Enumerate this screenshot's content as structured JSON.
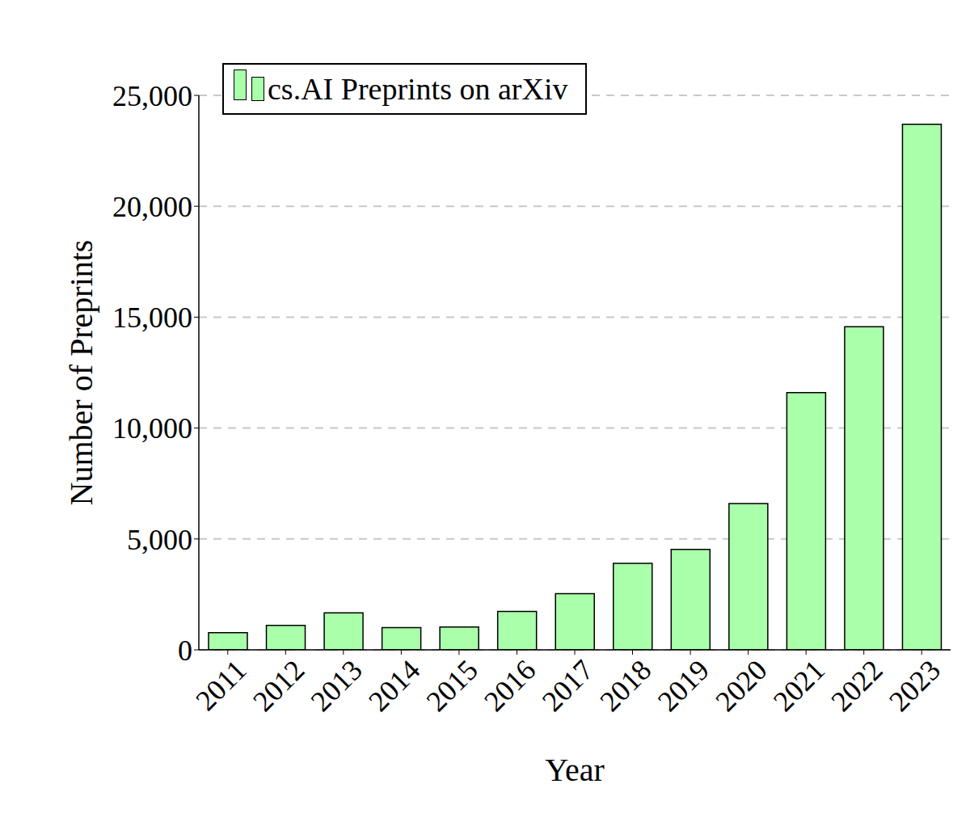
{
  "chart_data": {
    "type": "bar",
    "x_label": "Year",
    "y_label": "Number of Preprints",
    "categories": [
      "2011",
      "2012",
      "2013",
      "2014",
      "2015",
      "2016",
      "2017",
      "2018",
      "2019",
      "2020",
      "2021",
      "2022",
      "2023"
    ],
    "series": [
      {
        "name": "cs.AI Preprints on arXiv",
        "color": "#aaffaa",
        "values": [
          770,
          1100,
          1670,
          1000,
          1030,
          1730,
          2530,
          3900,
          4530,
          6600,
          11600,
          14570,
          23700
        ]
      }
    ],
    "ylim": [
      0,
      25000
    ],
    "yticks": [
      0,
      {
        "value": 5000,
        "label": "5,000"
      },
      {
        "value": 10000,
        "label": "10,000"
      },
      {
        "value": 15000,
        "label": "15,000"
      },
      {
        "value": 20000,
        "label": "20,000"
      },
      {
        "value": 25000,
        "label": "25,000"
      }
    ],
    "grid": true,
    "legend": "upper left"
  }
}
